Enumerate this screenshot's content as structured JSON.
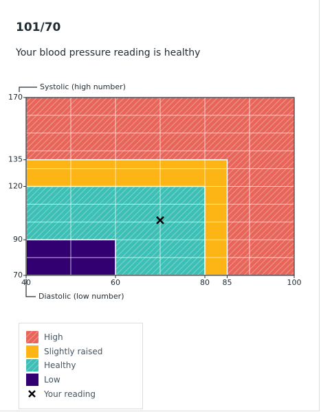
{
  "chart_data": {
    "type": "regions",
    "title": "101/70",
    "subtitle": "Your blood pressure reading is healthy",
    "ylabel": "Systolic (high number)",
    "xlabel": "Diastolic (low number)",
    "xlim": [
      40,
      100
    ],
    "xticks": [
      40,
      60,
      80,
      85,
      100
    ],
    "ylim": [
      70,
      170
    ],
    "yticks": [
      70,
      90,
      120,
      135,
      170
    ],
    "xgrid": [
      50,
      60,
      70,
      80,
      90
    ],
    "ygrid": [
      80,
      90,
      100,
      110,
      120,
      130,
      140,
      150,
      160
    ],
    "grid": true,
    "series": [
      {
        "name": "High",
        "color": "#e8655a",
        "hatch": true,
        "x": 100,
        "y": 170
      },
      {
        "name": "Slightly raised",
        "color": "#fdb515",
        "hatch": false,
        "x": 85,
        "y": 135
      },
      {
        "name": "Healthy",
        "color": "#3cbfb5",
        "hatch": true,
        "x": 80,
        "y": 120
      },
      {
        "name": "Low",
        "color": "#330072",
        "hatch": false,
        "x": 60,
        "y": 90
      }
    ],
    "reading": {
      "name": "Your reading",
      "x": 70,
      "y": 101
    }
  }
}
